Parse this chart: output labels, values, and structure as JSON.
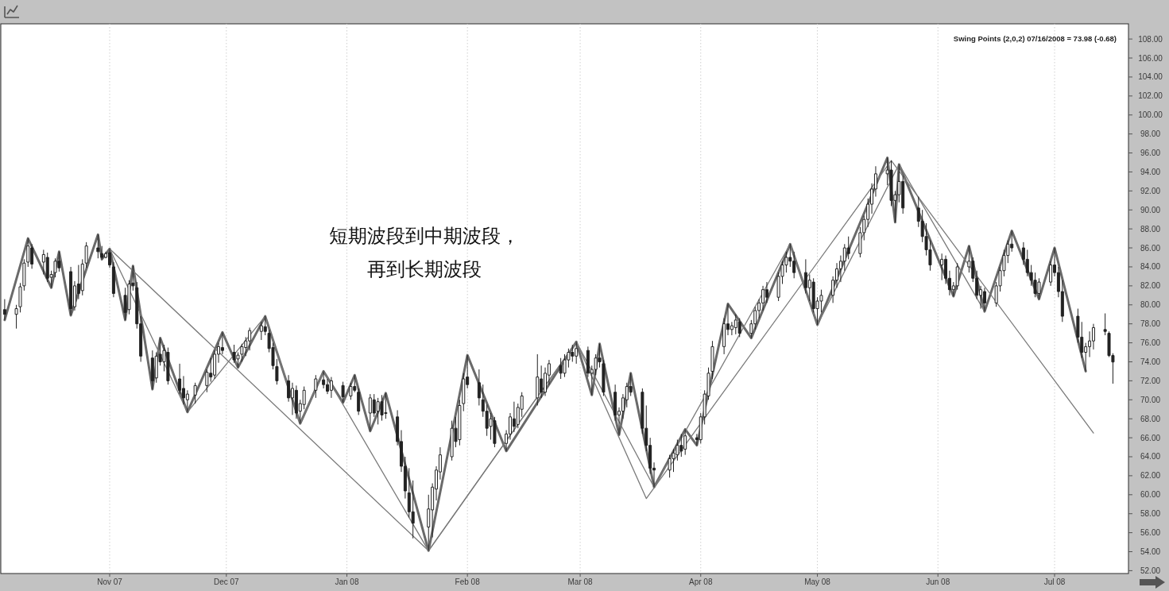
{
  "chart_data": {
    "type": "candlestick",
    "title": "Swing Points (2,0,2) 07/16/2008 = 73.98 (-0.68)",
    "annotations": [
      "短期波段到中期波段，再到长期波段"
    ],
    "xlim": [
      "2007-10-04",
      "2008-07-20"
    ],
    "xticks": [
      {
        "value": "2007-11",
        "label": "Nov 07"
      },
      {
        "value": "2007-12",
        "label": "Dec 07"
      },
      {
        "value": "2008-01",
        "label": "Jan 08"
      },
      {
        "value": "2008-02",
        "label": "Feb 08"
      },
      {
        "value": "2008-03",
        "label": "Mar 08"
      },
      {
        "value": "2008-04",
        "label": "Apr 08"
      },
      {
        "value": "2008-05",
        "label": "May 08"
      },
      {
        "value": "2008-06",
        "label": "Jun 08"
      },
      {
        "value": "2008-07",
        "label": "Jul 08"
      }
    ],
    "ylim": [
      51.7,
      109.6
    ],
    "yticks": [
      {
        "value": 52,
        "label": "52.00"
      },
      {
        "value": 54,
        "label": "54.00"
      },
      {
        "value": 56,
        "label": "56.00"
      },
      {
        "value": 58,
        "label": "58.00"
      },
      {
        "value": 60,
        "label": "60.00"
      },
      {
        "value": 62,
        "label": "62.00"
      },
      {
        "value": 64,
        "label": "64.00"
      },
      {
        "value": 66,
        "label": "66.00"
      },
      {
        "value": 68,
        "label": "68.00"
      },
      {
        "value": 70,
        "label": "70.00"
      },
      {
        "value": 72,
        "label": "72.00"
      },
      {
        "value": 74,
        "label": "74.00"
      },
      {
        "value": 76,
        "label": "76.00"
      },
      {
        "value": 78,
        "label": "78.00"
      },
      {
        "value": 80,
        "label": "80.00"
      },
      {
        "value": 82,
        "label": "82.00"
      },
      {
        "value": 84,
        "label": "84.00"
      },
      {
        "value": 86,
        "label": "86.00"
      },
      {
        "value": 88,
        "label": "88.00"
      },
      {
        "value": 90,
        "label": "90.00"
      },
      {
        "value": 92,
        "label": "92.00"
      },
      {
        "value": 94,
        "label": "94.00"
      },
      {
        "value": 96,
        "label": "96.00"
      },
      {
        "value": 98,
        "label": "98.00"
      },
      {
        "value": 100,
        "label": "100.00"
      },
      {
        "value": 102,
        "label": "102.00"
      },
      {
        "value": 104,
        "label": "104.00"
      },
      {
        "value": 106,
        "label": "106.00"
      },
      {
        "value": 108,
        "label": "108.00"
      }
    ],
    "grid": "x",
    "series": [
      {
        "type": "line",
        "color": "#6a6a6a",
        "x": [
          "2007-10-05",
          "2007-10-11",
          "2007-10-17",
          "2007-10-19",
          "2007-10-22",
          "2007-10-29",
          "2007-10-30",
          "2007-11-01",
          "2007-11-05",
          "2007-11-07",
          "2007-11-12",
          "2007-11-14",
          "2007-11-21",
          "2007-11-30",
          "2007-12-04",
          "2007-12-11",
          "2007-12-20",
          "2007-12-26",
          "2007-12-31",
          "2008-01-03",
          "2008-01-07",
          "2008-01-11",
          "2008-01-22",
          "2008-02-01",
          "2008-02-11",
          "2008-02-29",
          "2008-03-04",
          "2008-03-06",
          "2008-03-11",
          "2008-03-14",
          "2008-03-20",
          "2008-03-28",
          "2008-03-31",
          "2008-04-08",
          "2008-04-14",
          "2008-04-24",
          "2008-05-01",
          "2008-05-19",
          "2008-05-21",
          "2008-05-22",
          "2008-06-05",
          "2008-06-09",
          "2008-06-13",
          "2008-06-20",
          "2008-06-27",
          "2008-07-01",
          "2008-07-09"
        ],
        "values": [
          78.4,
          87.0,
          81.8,
          85.6,
          78.9,
          87.4,
          84.8,
          85.9,
          78.4,
          84.1,
          71.1,
          76.5,
          68.7,
          77.1,
          73.4,
          78.8,
          67.5,
          73.0,
          69.7,
          72.6,
          66.7,
          70.7,
          54.1,
          74.7,
          64.6,
          76.1,
          70.5,
          75.9,
          66.3,
          72.8,
          60.8,
          66.9,
          65.2,
          80.1,
          76.5,
          86.4,
          77.9,
          95.5,
          88.7,
          94.8,
          80.9,
          86.2,
          79.3,
          87.8,
          80.6,
          86.0,
          73.0
        ]
      },
      {
        "type": "line",
        "color": "#7a7a7a",
        "x": [
          "2007-11-01",
          "2007-11-21",
          "2007-12-11",
          "2007-12-20",
          "2007-12-26",
          "2008-01-22",
          "2008-02-29",
          "2008-03-20",
          "2008-04-24",
          "2008-05-01",
          "2008-05-22",
          "2008-06-13"
        ],
        "values": [
          85.9,
          68.7,
          78.8,
          67.5,
          73.0,
          54.1,
          76.1,
          60.8,
          86.4,
          77.9,
          94.8,
          79.3
        ]
      },
      {
        "type": "line",
        "color": "#7a7a7a",
        "x": [
          "2007-11-01",
          "2008-01-22",
          "2008-02-29",
          "2008-03-18",
          "2008-05-20",
          "2008-07-11"
        ],
        "values": [
          85.9,
          54.1,
          76.1,
          59.6,
          95.2,
          66.5
        ]
      },
      {
        "color": "#222222",
        "x": [
          "2007-10-05",
          "2007-10-08",
          "2007-10-09",
          "2007-10-10",
          "2007-10-11",
          "2007-10-12",
          "2007-10-15",
          "2007-10-16",
          "2007-10-17",
          "2007-10-18",
          "2007-10-19",
          "2007-10-22",
          "2007-10-23",
          "2007-10-24",
          "2007-10-25",
          "2007-10-26",
          "2007-10-29",
          "2007-10-30",
          "2007-10-31",
          "2007-11-01",
          "2007-11-02",
          "2007-11-05",
          "2007-11-06",
          "2007-11-07",
          "2007-11-08",
          "2007-11-09",
          "2007-11-12",
          "2007-11-13",
          "2007-11-14",
          "2007-11-15",
          "2007-11-16",
          "2007-11-19",
          "2007-11-20",
          "2007-11-21",
          "2007-11-23",
          "2007-11-26",
          "2007-11-27",
          "2007-11-28",
          "2007-11-29",
          "2007-11-30",
          "2007-12-03",
          "2007-12-04",
          "2007-12-05",
          "2007-12-06",
          "2007-12-07",
          "2007-12-10",
          "2007-12-11",
          "2007-12-12",
          "2007-12-13",
          "2007-12-14",
          "2007-12-17",
          "2007-12-18",
          "2007-12-19",
          "2007-12-20",
          "2007-12-21",
          "2007-12-24",
          "2007-12-26",
          "2007-12-27",
          "2007-12-28",
          "2007-12-31",
          "2008-01-02",
          "2008-01-03",
          "2008-01-04",
          "2008-01-07",
          "2008-01-08",
          "2008-01-09",
          "2008-01-10",
          "2008-01-11",
          "2008-01-14",
          "2008-01-15",
          "2008-01-16",
          "2008-01-17",
          "2008-01-18",
          "2008-01-22",
          "2008-01-23",
          "2008-01-24",
          "2008-01-25",
          "2008-01-28",
          "2008-01-29",
          "2008-01-30",
          "2008-01-31",
          "2008-02-01",
          "2008-02-04",
          "2008-02-05",
          "2008-02-06",
          "2008-02-07",
          "2008-02-08",
          "2008-02-11",
          "2008-02-12",
          "2008-02-13",
          "2008-02-14",
          "2008-02-15",
          "2008-02-19",
          "2008-02-20",
          "2008-02-21",
          "2008-02-22",
          "2008-02-25",
          "2008-02-26",
          "2008-02-27",
          "2008-02-28",
          "2008-02-29",
          "2008-03-03",
          "2008-03-04",
          "2008-03-05",
          "2008-03-06",
          "2008-03-07",
          "2008-03-10",
          "2008-03-11",
          "2008-03-12",
          "2008-03-13",
          "2008-03-14",
          "2008-03-17",
          "2008-03-18",
          "2008-03-19",
          "2008-03-20",
          "2008-03-24",
          "2008-03-25",
          "2008-03-26",
          "2008-03-27",
          "2008-03-28",
          "2008-03-31",
          "2008-04-01",
          "2008-04-02",
          "2008-04-03",
          "2008-04-04",
          "2008-04-07",
          "2008-04-08",
          "2008-04-09",
          "2008-04-10",
          "2008-04-11",
          "2008-04-14",
          "2008-04-15",
          "2008-04-16",
          "2008-04-17",
          "2008-04-18",
          "2008-04-21",
          "2008-04-22",
          "2008-04-23",
          "2008-04-24",
          "2008-04-25",
          "2008-04-28",
          "2008-04-29",
          "2008-04-30",
          "2008-05-01",
          "2008-05-02",
          "2008-05-05",
          "2008-05-06",
          "2008-05-07",
          "2008-05-08",
          "2008-05-09",
          "2008-05-12",
          "2008-05-13",
          "2008-05-14",
          "2008-05-15",
          "2008-05-16",
          "2008-05-19",
          "2008-05-20",
          "2008-05-21",
          "2008-05-22",
          "2008-05-23",
          "2008-05-27",
          "2008-05-28",
          "2008-05-29",
          "2008-05-30",
          "2008-06-02",
          "2008-06-03",
          "2008-06-04",
          "2008-06-05",
          "2008-06-06",
          "2008-06-09",
          "2008-06-10",
          "2008-06-11",
          "2008-06-12",
          "2008-06-13",
          "2008-06-16",
          "2008-06-17",
          "2008-06-18",
          "2008-06-19",
          "2008-06-20",
          "2008-06-23",
          "2008-06-24",
          "2008-06-25",
          "2008-06-26",
          "2008-06-27",
          "2008-06-30",
          "2008-07-01",
          "2008-07-02",
          "2008-07-03",
          "2008-07-07",
          "2008-07-08",
          "2008-07-09",
          "2008-07-10",
          "2008-07-11",
          "2008-07-14",
          "2008-07-15",
          "2008-07-16"
        ],
        "ohlc": [
          [
            79.5,
            80.6,
            78.4,
            79.0
          ],
          [
            79.0,
            80.0,
            77.5,
            79.6
          ],
          [
            79.8,
            82.3,
            79.2,
            81.9
          ],
          [
            82.0,
            84.8,
            81.5,
            84.4
          ],
          [
            84.5,
            87.0,
            84.0,
            86.2
          ],
          [
            86.0,
            86.4,
            83.8,
            84.3
          ],
          [
            84.5,
            85.8,
            83.2,
            85.3
          ],
          [
            85.0,
            85.5,
            82.4,
            82.8
          ],
          [
            82.9,
            83.6,
            81.8,
            83.2
          ],
          [
            83.4,
            84.9,
            82.9,
            84.6
          ],
          [
            84.6,
            85.6,
            83.5,
            83.9
          ],
          [
            83.5,
            84.0,
            78.9,
            79.6
          ],
          [
            79.8,
            82.5,
            79.4,
            82.0
          ],
          [
            82.2,
            84.2,
            80.6,
            81.2
          ],
          [
            81.5,
            84.8,
            81.0,
            84.3
          ],
          [
            84.4,
            86.6,
            83.9,
            86.2
          ],
          [
            86.0,
            87.4,
            84.9,
            85.6
          ],
          [
            85.4,
            86.2,
            84.8,
            85.0
          ],
          [
            85.0,
            85.6,
            84.9,
            85.4
          ],
          [
            85.5,
            85.9,
            83.9,
            84.2
          ],
          [
            84.0,
            84.5,
            80.8,
            81.2
          ],
          [
            81.0,
            81.8,
            78.4,
            79.2
          ],
          [
            79.5,
            82.6,
            79.0,
            82.2
          ],
          [
            82.3,
            84.1,
            81.5,
            82.0
          ],
          [
            81.8,
            82.4,
            77.5,
            78.0
          ],
          [
            78.0,
            78.8,
            74.0,
            74.6
          ],
          [
            74.4,
            75.2,
            71.1,
            72.0
          ],
          [
            72.3,
            75.0,
            71.8,
            74.6
          ],
          [
            74.8,
            76.5,
            73.6,
            74.0
          ],
          [
            74.0,
            75.8,
            73.0,
            75.2
          ],
          [
            75.0,
            75.5,
            71.6,
            72.0
          ],
          [
            72.2,
            73.8,
            70.6,
            71.0
          ],
          [
            71.2,
            72.5,
            69.5,
            70.2
          ],
          [
            70.0,
            71.0,
            68.7,
            70.6
          ],
          [
            70.5,
            71.8,
            69.6,
            71.5
          ],
          [
            71.5,
            73.2,
            70.8,
            72.9
          ],
          [
            72.8,
            74.4,
            71.9,
            72.4
          ],
          [
            72.6,
            75.2,
            72.2,
            74.8
          ],
          [
            74.8,
            76.0,
            73.9,
            75.6
          ],
          [
            75.5,
            77.1,
            74.8,
            75.2
          ],
          [
            75.0,
            75.8,
            73.9,
            74.2
          ],
          [
            74.3,
            75.0,
            73.4,
            74.7
          ],
          [
            74.8,
            75.9,
            74.0,
            75.6
          ],
          [
            75.5,
            76.6,
            74.6,
            76.2
          ],
          [
            76.2,
            77.6,
            75.2,
            77.3
          ],
          [
            77.2,
            78.2,
            76.3,
            77.8
          ],
          [
            77.7,
            78.8,
            76.8,
            77.2
          ],
          [
            77.0,
            77.4,
            75.0,
            75.4
          ],
          [
            75.5,
            76.0,
            73.2,
            73.6
          ],
          [
            73.5,
            74.3,
            71.6,
            72.0
          ],
          [
            72.0,
            72.6,
            69.8,
            70.2
          ],
          [
            70.2,
            71.8,
            68.4,
            71.2
          ],
          [
            71.0,
            71.5,
            68.0,
            68.6
          ],
          [
            68.8,
            70.0,
            67.5,
            69.6
          ],
          [
            69.5,
            71.4,
            69.0,
            71.0
          ],
          [
            71.0,
            72.6,
            70.2,
            72.2
          ],
          [
            72.1,
            73.0,
            71.2,
            71.6
          ],
          [
            71.6,
            72.2,
            70.6,
            70.9
          ],
          [
            71.0,
            72.4,
            70.2,
            72.0
          ],
          [
            71.5,
            71.9,
            69.7,
            70.3
          ],
          [
            70.4,
            71.8,
            70.0,
            71.4
          ],
          [
            71.4,
            72.6,
            70.8,
            71.0
          ],
          [
            70.8,
            71.2,
            68.4,
            68.8
          ],
          [
            68.6,
            70.6,
            66.7,
            70.2
          ],
          [
            70.0,
            70.6,
            68.2,
            68.6
          ],
          [
            68.8,
            70.2,
            67.4,
            69.8
          ],
          [
            69.8,
            70.5,
            67.8,
            68.4
          ],
          [
            68.6,
            70.7,
            68.0,
            68.6
          ],
          [
            68.2,
            68.9,
            65.2,
            65.6
          ],
          [
            65.6,
            66.8,
            62.4,
            63.0
          ],
          [
            63.0,
            64.0,
            59.6,
            60.4
          ],
          [
            60.2,
            62.8,
            57.6,
            58.2
          ],
          [
            58.2,
            61.5,
            55.4,
            57.0
          ],
          [
            56.6,
            60.0,
            54.1,
            58.5
          ],
          [
            58.4,
            61.2,
            55.5,
            60.8
          ],
          [
            60.6,
            63.0,
            59.4,
            62.6
          ],
          [
            62.4,
            65.0,
            61.6,
            64.2
          ],
          [
            64.0,
            67.8,
            63.6,
            67.0
          ],
          [
            67.0,
            68.2,
            65.0,
            65.6
          ],
          [
            65.8,
            70.0,
            65.2,
            69.4
          ],
          [
            69.6,
            72.8,
            68.8,
            72.2
          ],
          [
            72.4,
            74.7,
            71.2,
            71.6
          ],
          [
            71.8,
            73.2,
            69.4,
            70.2
          ],
          [
            70.0,
            71.6,
            68.2,
            68.8
          ],
          [
            68.8,
            69.5,
            66.2,
            67.0
          ],
          [
            67.2,
            68.6,
            65.8,
            68.0
          ],
          [
            67.8,
            68.2,
            65.0,
            65.4
          ],
          [
            65.4,
            66.8,
            64.6,
            66.4
          ],
          [
            66.4,
            68.6,
            65.8,
            68.2
          ],
          [
            68.0,
            69.8,
            66.6,
            67.2
          ],
          [
            67.4,
            69.6,
            67.0,
            69.2
          ],
          [
            69.0,
            70.8,
            68.2,
            70.4
          ],
          [
            70.2,
            74.8,
            69.4,
            72.4
          ],
          [
            72.2,
            73.6,
            70.2,
            70.8
          ],
          [
            70.8,
            73.4,
            70.4,
            72.8
          ],
          [
            72.6,
            74.2,
            71.6,
            73.8
          ],
          [
            73.6,
            74.4,
            72.2,
            72.8
          ],
          [
            72.8,
            74.8,
            72.4,
            74.2
          ],
          [
            74.2,
            75.4,
            73.4,
            75.0
          ],
          [
            75.0,
            75.8,
            74.0,
            74.6
          ],
          [
            74.6,
            76.1,
            73.8,
            75.4
          ],
          [
            75.2,
            75.6,
            72.4,
            72.8
          ],
          [
            72.8,
            73.6,
            70.5,
            73.2
          ],
          [
            73.2,
            74.8,
            72.6,
            74.4
          ],
          [
            74.4,
            75.9,
            73.4,
            74.0
          ],
          [
            73.8,
            74.2,
            70.4,
            70.8
          ],
          [
            70.8,
            71.6,
            67.8,
            68.4
          ],
          [
            68.4,
            69.2,
            66.3,
            68.8
          ],
          [
            68.8,
            70.6,
            68.0,
            70.2
          ],
          [
            70.0,
            71.8,
            69.2,
            71.4
          ],
          [
            71.4,
            72.8,
            70.4,
            70.8
          ],
          [
            70.8,
            71.2,
            66.4,
            67.0
          ],
          [
            67.0,
            69.4,
            64.6,
            65.2
          ],
          [
            65.2,
            66.0,
            62.2,
            62.8
          ],
          [
            62.8,
            63.4,
            60.8,
            62.6
          ],
          [
            62.6,
            64.2,
            61.8,
            63.8
          ],
          [
            63.8,
            64.8,
            62.4,
            64.4
          ],
          [
            64.2,
            65.8,
            63.6,
            65.2
          ],
          [
            65.2,
            66.4,
            64.0,
            64.6
          ],
          [
            64.8,
            66.9,
            64.2,
            66.2
          ],
          [
            66.0,
            66.4,
            65.2,
            65.8
          ],
          [
            65.8,
            68.6,
            65.4,
            68.2
          ],
          [
            68.2,
            71.0,
            67.4,
            70.6
          ],
          [
            70.4,
            73.4,
            70.0,
            72.8
          ],
          [
            73.0,
            76.2,
            72.2,
            75.6
          ],
          [
            75.6,
            78.6,
            74.8,
            78.0
          ],
          [
            78.0,
            80.1,
            76.8,
            77.4
          ],
          [
            77.4,
            78.2,
            76.8,
            77.8
          ],
          [
            77.6,
            79.0,
            76.9,
            78.4
          ],
          [
            78.2,
            78.6,
            76.6,
            77.0
          ],
          [
            77.0,
            78.4,
            76.5,
            78.0
          ],
          [
            78.0,
            79.8,
            77.4,
            79.4
          ],
          [
            79.4,
            80.6,
            78.6,
            80.2
          ],
          [
            80.2,
            82.0,
            79.4,
            81.6
          ],
          [
            81.6,
            82.4,
            80.2,
            80.8
          ],
          [
            80.8,
            83.4,
            80.4,
            83.0
          ],
          [
            83.0,
            84.6,
            82.2,
            84.2
          ],
          [
            84.2,
            85.6,
            83.4,
            85.0
          ],
          [
            85.0,
            86.4,
            84.0,
            84.6
          ],
          [
            84.6,
            85.6,
            82.8,
            83.4
          ],
          [
            83.4,
            84.8,
            81.2,
            81.8
          ],
          [
            81.8,
            83.2,
            80.4,
            82.6
          ],
          [
            82.4,
            82.8,
            79.2,
            79.6
          ],
          [
            79.6,
            80.8,
            77.9,
            80.4
          ],
          [
            80.4,
            81.6,
            79.2,
            81.0
          ],
          [
            81.0,
            83.0,
            80.2,
            82.6
          ],
          [
            82.6,
            84.4,
            81.8,
            83.8
          ],
          [
            83.8,
            85.2,
            82.4,
            84.6
          ],
          [
            84.6,
            86.4,
            83.6,
            86.0
          ],
          [
            86.0,
            87.2,
            84.8,
            85.4
          ],
          [
            85.4,
            88.2,
            85.0,
            87.6
          ],
          [
            87.6,
            89.4,
            86.8,
            89.0
          ],
          [
            89.0,
            91.2,
            88.2,
            90.6
          ],
          [
            90.6,
            92.8,
            89.6,
            92.2
          ],
          [
            92.2,
            94.6,
            91.4,
            93.8
          ],
          [
            93.8,
            95.5,
            92.6,
            94.2
          ],
          [
            94.2,
            95.2,
            90.4,
            91.0
          ],
          [
            91.0,
            92.0,
            88.7,
            91.6
          ],
          [
            91.6,
            94.8,
            90.8,
            93.0
          ],
          [
            93.0,
            93.6,
            89.6,
            90.2
          ],
          [
            90.2,
            91.4,
            88.2,
            88.8
          ],
          [
            88.8,
            90.0,
            86.6,
            87.2
          ],
          [
            87.2,
            88.6,
            85.2,
            85.8
          ],
          [
            85.8,
            86.8,
            83.6,
            84.2
          ],
          [
            84.2,
            85.4,
            82.6,
            84.8
          ],
          [
            84.8,
            85.2,
            82.2,
            82.8
          ],
          [
            82.8,
            83.6,
            81.0,
            81.6
          ],
          [
            81.6,
            82.4,
            80.9,
            82.0
          ],
          [
            82.0,
            84.4,
            81.6,
            84.0
          ],
          [
            84.0,
            86.2,
            83.4,
            84.6
          ],
          [
            84.6,
            85.0,
            82.4,
            82.8
          ],
          [
            82.8,
            83.6,
            80.6,
            81.0
          ],
          [
            81.0,
            82.0,
            79.6,
            81.6
          ],
          [
            81.4,
            81.8,
            79.3,
            80.2
          ],
          [
            80.2,
            82.4,
            79.8,
            82.0
          ],
          [
            82.0,
            84.0,
            81.4,
            83.6
          ],
          [
            83.6,
            85.8,
            83.0,
            85.2
          ],
          [
            85.2,
            86.8,
            84.4,
            86.4
          ],
          [
            86.4,
            87.8,
            85.6,
            86.0
          ],
          [
            86.0,
            86.6,
            84.2,
            84.8
          ],
          [
            84.8,
            85.8,
            83.0,
            83.4
          ],
          [
            83.4,
            84.2,
            82.0,
            82.6
          ],
          [
            82.6,
            83.4,
            80.8,
            81.2
          ],
          [
            81.2,
            82.8,
            80.6,
            82.4
          ],
          [
            82.4,
            84.6,
            82.0,
            84.2
          ],
          [
            84.2,
            86.0,
            83.0,
            83.4
          ],
          [
            83.4,
            84.0,
            80.8,
            81.4
          ],
          [
            81.4,
            82.6,
            78.2,
            78.8
          ],
          [
            78.8,
            79.6,
            76.0,
            76.6
          ],
          [
            76.6,
            78.2,
            74.4,
            75.0
          ],
          [
            75.0,
            76.0,
            73.0,
            75.6
          ],
          [
            75.6,
            77.2,
            74.5,
            76.2
          ],
          [
            76.2,
            78.0,
            75.3,
            77.6
          ],
          [
            77.4,
            79.1,
            76.8,
            77.2
          ],
          [
            77.0,
            77.2,
            74.5,
            74.66
          ],
          [
            74.66,
            74.9,
            71.7,
            73.98
          ]
        ]
      }
    ]
  }
}
